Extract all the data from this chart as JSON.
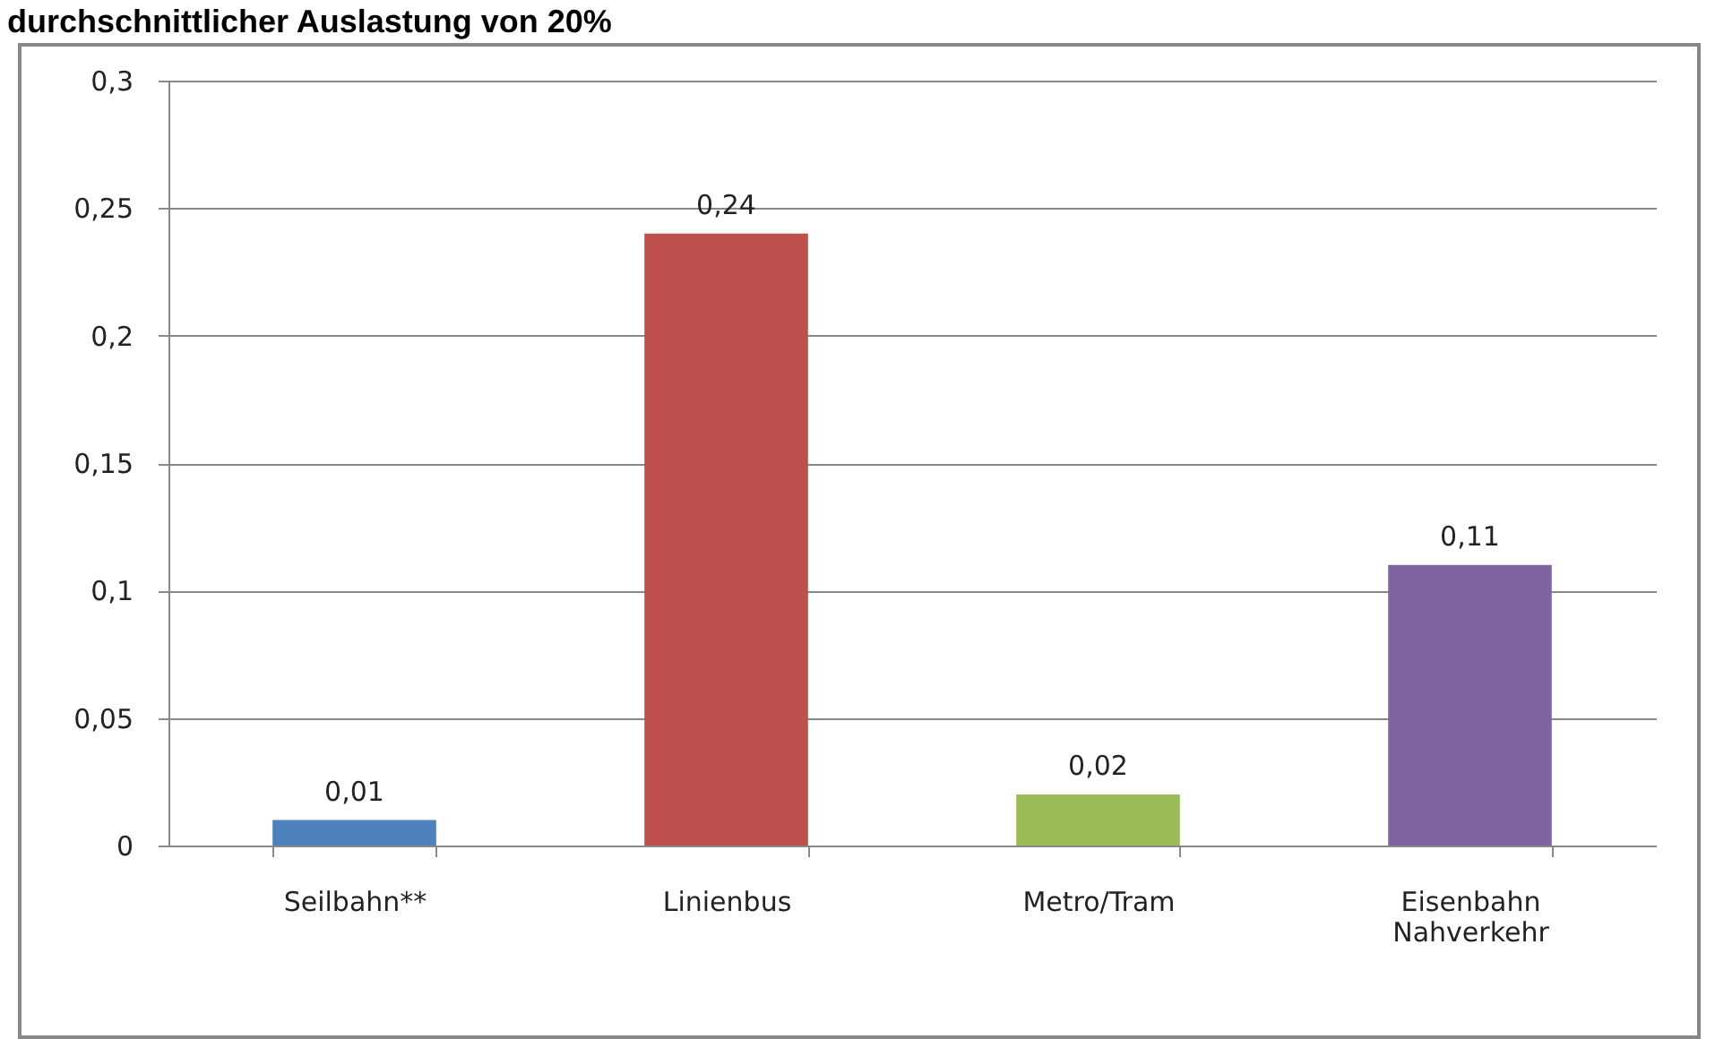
{
  "chart_data": {
    "type": "bar",
    "title": "durchschnittlicher Auslastung von 20%",
    "categories": [
      "Seilbahn**",
      "Linienbus",
      "Metro/Tram",
      "Eisenbahn Nahverkehr"
    ],
    "values": [
      0.01,
      0.24,
      0.02,
      0.11
    ],
    "colors": [
      "#4f81bd",
      "#c0504d",
      "#9bbb59",
      "#8064a2"
    ],
    "value_labels": [
      "0,01",
      "0,24",
      "0,02",
      "0,11"
    ],
    "ylim": [
      0,
      0.3
    ],
    "yticks": [
      {
        "value": 0,
        "label": "0"
      },
      {
        "value": 0.05,
        "label": "0,05"
      },
      {
        "value": 0.1,
        "label": "0,1"
      },
      {
        "value": 0.15,
        "label": "0,15"
      },
      {
        "value": 0.2,
        "label": "0,2"
      },
      {
        "value": 0.25,
        "label": "0,25"
      },
      {
        "value": 0.3,
        "label": "0,3"
      }
    ],
    "grid": "y"
  }
}
